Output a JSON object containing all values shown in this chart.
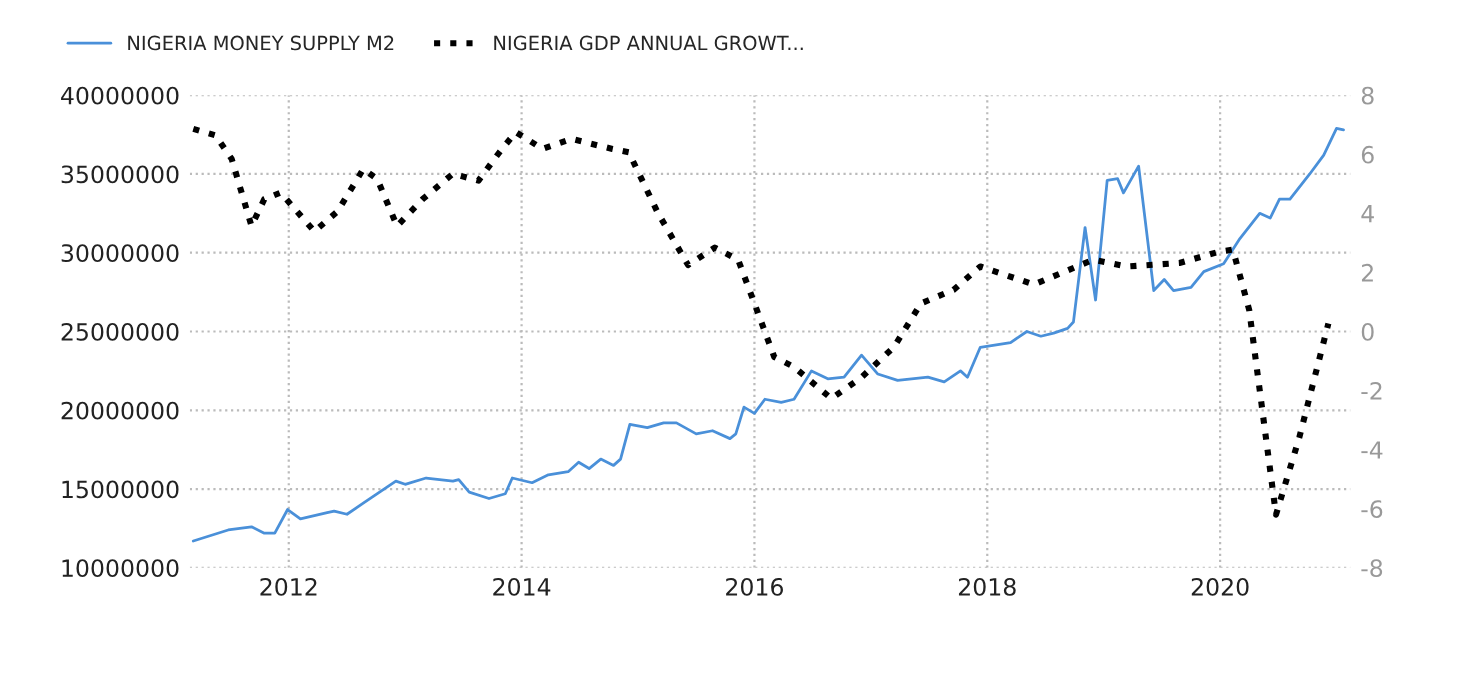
{
  "chart_data": {
    "type": "line",
    "legend": "top left",
    "grid": true,
    "marker": "none",
    "xlim": [
      2011.15,
      2021.12
    ],
    "xticks": [
      2012,
      2014,
      2016,
      2018,
      2020
    ],
    "ylim": [
      10000000,
      40000000
    ],
    "yticks": [
      10000000,
      15000000,
      20000000,
      25000000,
      30000000,
      35000000,
      40000000
    ],
    "y2lim": [
      -8,
      8
    ],
    "y2ticks": [
      -8,
      -6,
      -4,
      -2,
      0,
      2,
      4,
      6,
      8
    ],
    "series": [
      {
        "name": "NIGERIA MONEY SUPPLY M2",
        "color": "#4a90d9",
        "line_style": "solid",
        "x": [
          2011.18,
          2011.48,
          2011.68,
          2011.79,
          2011.88,
          2011.99,
          2012.1,
          2012.33,
          2012.39,
          2012.5,
          2012.64,
          2012.92,
          2013.0,
          2013.18,
          2013.41,
          2013.46,
          2013.55,
          2013.72,
          2013.86,
          2013.92,
          2014.09,
          2014.23,
          2014.4,
          2014.49,
          2014.58,
          2014.68,
          2014.79,
          2014.85,
          2014.93,
          2015.08,
          2015.22,
          2015.33,
          2015.5,
          2015.64,
          2015.79,
          2015.84,
          2015.91,
          2016.0,
          2016.09,
          2016.23,
          2016.34,
          2016.49,
          2016.63,
          2016.77,
          2016.92,
          2017.06,
          2017.23,
          2017.49,
          2017.63,
          2017.77,
          2017.83,
          2017.94,
          2018.2,
          2018.34,
          2018.46,
          2018.57,
          2018.69,
          2018.74,
          2018.84,
          2018.93,
          2019.03,
          2019.12,
          2019.17,
          2019.3,
          2019.43,
          2019.52,
          2019.6,
          2019.75,
          2019.86,
          2020.03,
          2020.17,
          2020.34,
          2020.43,
          2020.51,
          2020.6,
          2020.77,
          2020.89,
          2021.0,
          2021.06
        ],
        "values": [
          11700000,
          12400000,
          12600000,
          12200000,
          12200000,
          13700000,
          13100000,
          13500000,
          13600000,
          13400000,
          14100000,
          15500000,
          15300000,
          15700000,
          15500000,
          15600000,
          14800000,
          14400000,
          14700000,
          15700000,
          15400000,
          15900000,
          16100000,
          16700000,
          16300000,
          16900000,
          16500000,
          16900000,
          19100000,
          18900000,
          19200000,
          19200000,
          18500000,
          18700000,
          18200000,
          18500000,
          20200000,
          19800000,
          20700000,
          20500000,
          20700000,
          22500000,
          22000000,
          22100000,
          23500000,
          22300000,
          21900000,
          22100000,
          21800000,
          22500000,
          22100000,
          24000000,
          24300000,
          25000000,
          24700000,
          24900000,
          25200000,
          25600000,
          31600000,
          27000000,
          34600000,
          34700000,
          33800000,
          35500000,
          27600000,
          28300000,
          27600000,
          27800000,
          28800000,
          29300000,
          30900000,
          32500000,
          32200000,
          33400000,
          33400000,
          35000000,
          36200000,
          37900000,
          37800000
        ]
      },
      {
        "name": "NIGERIA GDP ANNUAL GROWT...",
        "color": "#000000",
        "line_style": "dotted",
        "axis": "y2",
        "x": [
          2011.18,
          2011.37,
          2011.51,
          2011.68,
          2011.79,
          2011.93,
          2012.22,
          2012.42,
          2012.64,
          2012.76,
          2012.93,
          2013.15,
          2013.41,
          2013.63,
          2013.81,
          2013.95,
          2014.18,
          2014.43,
          2014.78,
          2014.92,
          2015.17,
          2015.43,
          2015.66,
          2015.86,
          2016.0,
          2016.17,
          2016.34,
          2016.66,
          2016.92,
          2017.2,
          2017.43,
          2017.71,
          2017.94,
          2018.4,
          2018.91,
          2019.2,
          2019.65,
          2019.99,
          2020.11,
          2020.25,
          2020.48,
          2020.68,
          2020.93
        ],
        "values": [
          6.86,
          6.64,
          5.84,
          3.57,
          4.48,
          4.7,
          3.39,
          4.07,
          5.5,
          5.16,
          3.57,
          4.48,
          5.34,
          5.11,
          6.07,
          6.75,
          6.18,
          6.52,
          6.18,
          6.07,
          4.02,
          2.25,
          2.84,
          2.43,
          0.95,
          -0.86,
          -1.2,
          -2.27,
          -1.55,
          -0.52,
          0.95,
          1.41,
          2.2,
          1.59,
          2.43,
          2.2,
          2.32,
          2.7,
          2.77,
          0.73,
          -6.2,
          -3.59,
          0.27
        ]
      }
    ]
  }
}
